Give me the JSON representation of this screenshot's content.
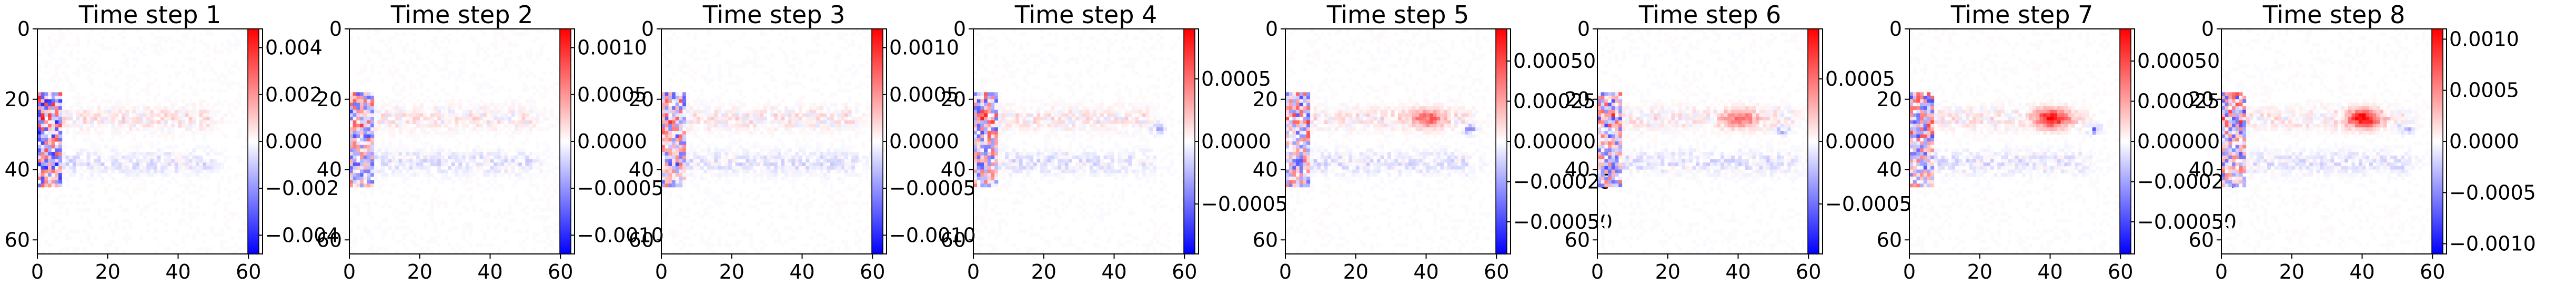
{
  "chart_data": [
    {
      "type": "heatmap",
      "title": "Time step 1",
      "xticks": [
        0,
        20,
        40,
        60
      ],
      "yticks": [
        0,
        20,
        40,
        60
      ],
      "xlim": [
        0,
        64
      ],
      "ylim": [
        64,
        0
      ],
      "colormap": "bwr",
      "colorbar": {
        "range": [
          -0.0048,
          0.0048
        ],
        "ticks": [
          0.004,
          0.002,
          0.0,
          -0.002,
          -0.004
        ],
        "tick_labels": [
          "0.004",
          "0.002",
          "0.000",
          "−0.002",
          "−0.004"
        ]
      }
    },
    {
      "type": "heatmap",
      "title": "Time step 2",
      "xticks": [
        0,
        20,
        40,
        60
      ],
      "yticks": [
        0,
        20,
        40,
        60
      ],
      "xlim": [
        0,
        64
      ],
      "ylim": [
        64,
        0
      ],
      "colormap": "bwr",
      "colorbar": {
        "range": [
          -0.0012,
          0.0012
        ],
        "ticks": [
          0.001,
          0.0005,
          0.0,
          -0.0005,
          -0.001
        ],
        "tick_labels": [
          "0.0010",
          "0.0005",
          "0.0000",
          "−0.0005",
          "−0.0010"
        ]
      }
    },
    {
      "type": "heatmap",
      "title": "Time step 3",
      "xticks": [
        0,
        20,
        40,
        60
      ],
      "yticks": [
        0,
        20,
        40,
        60
      ],
      "xlim": [
        0,
        64
      ],
      "ylim": [
        64,
        0
      ],
      "colormap": "bwr",
      "colorbar": {
        "range": [
          -0.0012,
          0.0012
        ],
        "ticks": [
          0.001,
          0.0005,
          0.0,
          -0.0005,
          -0.001
        ],
        "tick_labels": [
          "0.0010",
          "0.0005",
          "0.0000",
          "−0.0005",
          "−0.0010"
        ]
      }
    },
    {
      "type": "heatmap",
      "title": "Time step 4",
      "xticks": [
        0,
        20,
        40,
        60
      ],
      "yticks": [
        0,
        20,
        40,
        60
      ],
      "xlim": [
        0,
        64
      ],
      "ylim": [
        64,
        0
      ],
      "colormap": "bwr",
      "colorbar": {
        "range": [
          -0.0009,
          0.0009
        ],
        "ticks": [
          0.0005,
          0.0,
          -0.0005
        ],
        "tick_labels": [
          "0.0005",
          "0.0000",
          "−0.0005"
        ]
      }
    },
    {
      "type": "heatmap",
      "title": "Time step 5",
      "xticks": [
        0,
        20,
        40,
        60
      ],
      "yticks": [
        0,
        20,
        40,
        60
      ],
      "xlim": [
        0,
        64
      ],
      "ylim": [
        64,
        0
      ],
      "colormap": "bwr",
      "colorbar": {
        "range": [
          -0.0007,
          0.0007
        ],
        "ticks": [
          0.0005,
          0.00025,
          0.0,
          -0.00025,
          -0.0005
        ],
        "tick_labels": [
          "0.00050",
          "0.00025",
          "0.00000",
          "−0.00025",
          "−0.00050"
        ]
      }
    },
    {
      "type": "heatmap",
      "title": "Time step 6",
      "xticks": [
        0,
        20,
        40,
        60
      ],
      "yticks": [
        0,
        20,
        40,
        60
      ],
      "xlim": [
        0,
        64
      ],
      "ylim": [
        64,
        0
      ],
      "colormap": "bwr",
      "colorbar": {
        "range": [
          -0.0009,
          0.0009
        ],
        "ticks": [
          0.0005,
          0.0,
          -0.0005
        ],
        "tick_labels": [
          "0.0005",
          "0.0000",
          "−0.0005"
        ]
      }
    },
    {
      "type": "heatmap",
      "title": "Time step 7",
      "xticks": [
        0,
        20,
        40,
        60
      ],
      "yticks": [
        0,
        20,
        40,
        60
      ],
      "xlim": [
        0,
        64
      ],
      "ylim": [
        64,
        0
      ],
      "colormap": "bwr",
      "colorbar": {
        "range": [
          -0.0007,
          0.0007
        ],
        "ticks": [
          0.0005,
          0.00025,
          0.0,
          -0.00025,
          -0.0005
        ],
        "tick_labels": [
          "0.00050",
          "0.00025",
          "0.00000",
          "−0.00025",
          "−0.00050"
        ]
      }
    },
    {
      "type": "heatmap",
      "title": "Time step 8",
      "xticks": [
        0,
        20,
        40,
        60
      ],
      "yticks": [
        0,
        20,
        40,
        60
      ],
      "xlim": [
        0,
        64
      ],
      "ylim": [
        64,
        0
      ],
      "colormap": "bwr",
      "colorbar": {
        "range": [
          -0.0011,
          0.0011
        ],
        "ticks": [
          0.001,
          0.0005,
          0.0,
          -0.0005,
          -0.001
        ],
        "tick_labels": [
          "0.0010",
          "0.0005",
          "0.0000",
          "−0.0005",
          "−0.0010"
        ]
      }
    }
  ]
}
